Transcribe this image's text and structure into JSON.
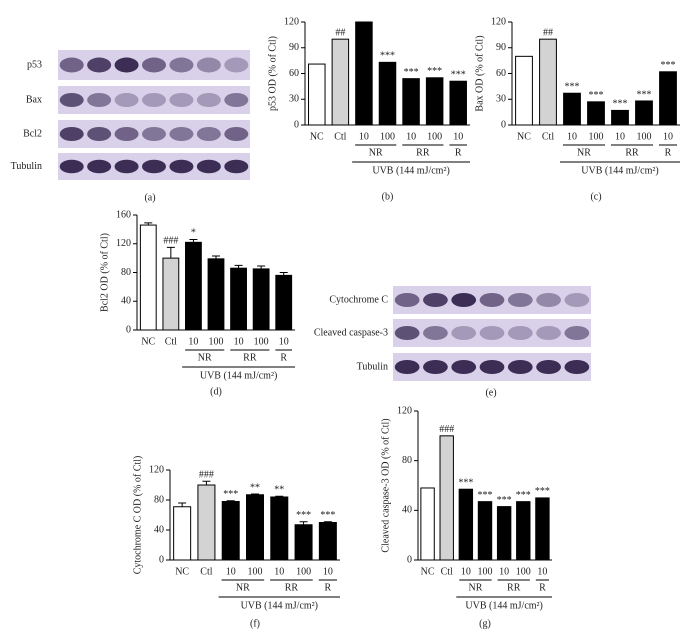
{
  "blots": [
    {
      "panel": "(a)",
      "rows": [
        "p53",
        "Bax",
        "Bcl2",
        "Tubulin"
      ]
    },
    {
      "panel": "(e)",
      "rows": [
        "Cytochrome C",
        "Cleaved caspase-3",
        "Tubulin"
      ]
    }
  ],
  "chart_data": [
    {
      "type": "bar",
      "panel": "(b)",
      "ylabel": "p53 OD (% of Ctl)",
      "xlabel": "UVB (144 mJ/cm²)",
      "categories": [
        "NC",
        "Ctl",
        "10",
        "100",
        "10",
        "100",
        "10"
      ],
      "groups": [
        {
          "name": "NR",
          "size": 2
        },
        {
          "name": "RR",
          "size": 2
        },
        {
          "name": "R",
          "size": 1
        }
      ],
      "values": [
        71,
        100,
        120,
        73,
        54,
        55,
        51
      ],
      "annotations": [
        null,
        "##",
        null,
        "***",
        "***",
        "***",
        "***"
      ],
      "colors": [
        "#ffffff",
        "#d3d3d3",
        "#000000",
        "#000000",
        "#000000",
        "#000000",
        "#000000"
      ],
      "ylim": [
        0,
        120
      ],
      "yticks": [
        0,
        30,
        60,
        90,
        120
      ]
    },
    {
      "type": "bar",
      "panel": "(c)",
      "ylabel": "Bax OD (% of Ctl)",
      "xlabel": "UVB (144 mJ/cm²)",
      "categories": [
        "NC",
        "Ctl",
        "10",
        "100",
        "10",
        "100",
        "10"
      ],
      "groups": [
        {
          "name": "NR",
          "size": 2
        },
        {
          "name": "RR",
          "size": 2
        },
        {
          "name": "R",
          "size": 1
        }
      ],
      "values": [
        80,
        100,
        37,
        27,
        17,
        28,
        62
      ],
      "annotations": [
        null,
        "##",
        "***",
        "***",
        "***",
        "***",
        "***"
      ],
      "colors": [
        "#ffffff",
        "#d3d3d3",
        "#000000",
        "#000000",
        "#000000",
        "#000000",
        "#000000"
      ],
      "ylim": [
        0,
        120
      ],
      "yticks": [
        0,
        30,
        60,
        90,
        120
      ]
    },
    {
      "type": "bar",
      "panel": "(d)",
      "ylabel": "Bcl2 OD (% of Ctl)",
      "xlabel": "UVB (144 mJ/cm²)",
      "categories": [
        "NC",
        "Ctl",
        "10",
        "100",
        "10",
        "100",
        "10"
      ],
      "groups": [
        {
          "name": "NR",
          "size": 2
        },
        {
          "name": "RR",
          "size": 2
        },
        {
          "name": "R",
          "size": 1
        }
      ],
      "values": [
        146,
        100,
        122,
        99,
        86,
        85,
        76
      ],
      "errors": [
        3,
        15,
        4,
        4,
        4,
        4,
        4
      ],
      "annotations": [
        null,
        "###",
        "*",
        null,
        null,
        null,
        null
      ],
      "colors": [
        "#ffffff",
        "#d3d3d3",
        "#000000",
        "#000000",
        "#000000",
        "#000000",
        "#000000"
      ],
      "ylim": [
        0,
        160
      ],
      "yticks": [
        0,
        40,
        80,
        120,
        160
      ]
    },
    {
      "type": "bar",
      "panel": "(f)",
      "ylabel": "Cytochrome C OD (% of Ctl)",
      "xlabel": "UVB (144 mJ/cm²)",
      "categories": [
        "NC",
        "Ctl",
        "10",
        "100",
        "10",
        "100",
        "10"
      ],
      "groups": [
        {
          "name": "NR",
          "size": 2
        },
        {
          "name": "RR",
          "size": 2
        },
        {
          "name": "R",
          "size": 1
        }
      ],
      "values": [
        71,
        100,
        78,
        87,
        84,
        47,
        50
      ],
      "errors": [
        5,
        5,
        1,
        1,
        1,
        4,
        1
      ],
      "annotations": [
        null,
        "###",
        "***",
        "**",
        "**",
        "***",
        "***"
      ],
      "colors": [
        "#ffffff",
        "#d3d3d3",
        "#000000",
        "#000000",
        "#000000",
        "#000000",
        "#000000"
      ],
      "ylim": [
        0,
        120
      ],
      "yticks": [
        0,
        40,
        80,
        120
      ]
    },
    {
      "type": "bar",
      "panel": "(g)",
      "ylabel": "Cleaved caspase-3 OD (% of Ctl)",
      "xlabel": "UVB (144 mJ/cm²)",
      "categories": [
        "NC",
        "Ctl",
        "10",
        "100",
        "10",
        "100",
        "10"
      ],
      "groups": [
        {
          "name": "NR",
          "size": 2
        },
        {
          "name": "RR",
          "size": 2
        },
        {
          "name": "R",
          "size": 1
        }
      ],
      "values": [
        58,
        100,
        57,
        47,
        43,
        47,
        50
      ],
      "annotations": [
        null,
        "###",
        "***",
        "***",
        "***",
        "***",
        "***"
      ],
      "colors": [
        "#ffffff",
        "#d3d3d3",
        "#000000",
        "#000000",
        "#000000",
        "#000000",
        "#000000"
      ],
      "ylim": [
        0,
        120
      ],
      "yticks": [
        0,
        40,
        80,
        120
      ]
    }
  ]
}
